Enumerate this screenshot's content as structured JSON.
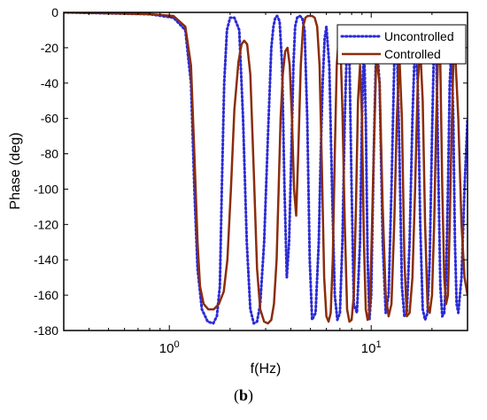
{
  "caption": {
    "open": "(",
    "label": "b",
    "close": ")"
  },
  "chart_data": {
    "type": "line",
    "xlabel": "f(Hz)",
    "ylabel": "Phase (deg)",
    "xscale": "log",
    "xlim": [
      0.3,
      30
    ],
    "ylim": [
      -180,
      0
    ],
    "yticks": [
      0,
      -20,
      -40,
      -60,
      -80,
      -100,
      -120,
      -140,
      -160,
      -180
    ],
    "xticks": [
      {
        "value": 1,
        "base": "10",
        "exp": "0"
      },
      {
        "value": 10,
        "base": "10",
        "exp": "1"
      }
    ],
    "grid": false,
    "legend": "top-right",
    "series": [
      {
        "name": "Uncontrolled",
        "color": "#2b2bd6",
        "style": "dotted",
        "x": [
          0.3,
          0.8,
          1.05,
          1.2,
          1.28,
          1.33,
          1.38,
          1.45,
          1.55,
          1.65,
          1.72,
          1.78,
          1.82,
          1.87,
          1.93,
          2.0,
          2.1,
          2.22,
          2.32,
          2.42,
          2.52,
          2.62,
          2.72,
          2.82,
          2.95,
          3.08,
          3.2,
          3.28,
          3.35,
          3.42,
          3.52,
          3.62,
          3.72,
          3.82,
          3.92,
          4.02,
          4.12,
          4.2,
          4.3,
          4.42,
          4.55,
          4.68,
          4.82,
          4.96,
          5.1,
          5.3,
          5.5,
          5.62,
          5.75,
          5.88,
          6.0,
          6.2,
          6.4,
          6.6,
          6.8,
          7.0,
          7.2,
          7.4,
          7.6,
          7.8,
          8.0,
          8.2,
          8.5,
          8.8,
          9.0,
          9.2,
          9.4,
          9.6,
          9.8,
          10.0,
          10.3,
          10.6,
          11.0,
          11.4,
          11.8,
          12.2,
          12.6,
          13.0,
          13.4,
          13.8,
          14.2,
          14.6,
          15.0,
          15.5,
          16.0,
          16.5,
          17.0,
          17.5,
          18.0,
          18.5,
          19.0,
          19.5,
          20.0,
          20.5,
          21.0,
          21.5,
          22.0,
          22.5,
          23.0,
          23.5,
          24.0,
          24.5,
          25.0,
          25.5,
          26.0,
          26.5,
          27.0,
          28.0,
          29.0,
          30.0
        ],
        "y": [
          0,
          -1,
          -3,
          -10,
          -40,
          -100,
          -145,
          -168,
          -175,
          -176,
          -172,
          -155,
          -100,
          -40,
          -10,
          -3,
          -3,
          -10,
          -60,
          -130,
          -168,
          -176,
          -175,
          -165,
          -130,
          -70,
          -20,
          -8,
          -3,
          -2,
          -5,
          -30,
          -100,
          -150,
          -130,
          -80,
          -30,
          -8,
          -3,
          -2,
          -3,
          -10,
          -60,
          -140,
          -174,
          -170,
          -130,
          -80,
          -40,
          -15,
          -8,
          -30,
          -100,
          -160,
          -174,
          -170,
          -130,
          -60,
          -15,
          -25,
          -100,
          -165,
          -170,
          -130,
          -60,
          -15,
          -60,
          -140,
          -174,
          -160,
          -80,
          -15,
          -40,
          -130,
          -170,
          -160,
          -100,
          -30,
          -15,
          -80,
          -155,
          -172,
          -170,
          -130,
          -60,
          -15,
          -40,
          -120,
          -168,
          -174,
          -170,
          -140,
          -70,
          -15,
          -20,
          -90,
          -155,
          -172,
          -170,
          -150,
          -100,
          -40,
          -20,
          -60,
          -130,
          -165,
          -170,
          -150,
          -100,
          -60
        ]
      },
      {
        "name": "Controlled",
        "color": "#8b2d0c",
        "style": "solid",
        "x": [
          0.3,
          0.8,
          1.05,
          1.2,
          1.28,
          1.33,
          1.38,
          1.42,
          1.48,
          1.56,
          1.66,
          1.76,
          1.86,
          1.94,
          2.02,
          2.1,
          2.2,
          2.28,
          2.35,
          2.43,
          2.52,
          2.62,
          2.72,
          2.82,
          2.95,
          3.08,
          3.2,
          3.3,
          3.4,
          3.48,
          3.56,
          3.65,
          3.75,
          3.85,
          3.95,
          4.05,
          4.15,
          4.25,
          4.35,
          4.48,
          4.6,
          4.72,
          4.85,
          4.98,
          5.1,
          5.25,
          5.4,
          5.55,
          5.7,
          5.85,
          6.0,
          6.15,
          6.3,
          6.45,
          6.6,
          6.75,
          6.9,
          7.05,
          7.2,
          7.4,
          7.6,
          7.8,
          8.0,
          8.2,
          8.4,
          8.6,
          8.8,
          9.0,
          9.2,
          9.4,
          9.6,
          9.8,
          10.0,
          10.3,
          10.6,
          11.0,
          11.4,
          11.8,
          12.2,
          12.6,
          13.0,
          13.4,
          13.8,
          14.2,
          14.6,
          15.0,
          15.5,
          16.0,
          16.5,
          17.0,
          17.5,
          18.0,
          18.5,
          19.0,
          19.5,
          20.0,
          20.5,
          21.0,
          21.5,
          22.0,
          22.5,
          23.0,
          23.5,
          24.0,
          24.5,
          25.0,
          25.5,
          26.0,
          27.0,
          28.0,
          29.0,
          30.0
        ],
        "y": [
          0,
          -1,
          -2,
          -8,
          -30,
          -80,
          -130,
          -155,
          -165,
          -168,
          -168,
          -165,
          -158,
          -140,
          -100,
          -55,
          -28,
          -18,
          -16,
          -18,
          -35,
          -90,
          -145,
          -168,
          -175,
          -176,
          -174,
          -165,
          -140,
          -100,
          -60,
          -35,
          -22,
          -20,
          -30,
          -60,
          -100,
          -115,
          -80,
          -30,
          -8,
          -3,
          -2,
          -2,
          -2,
          -3,
          -8,
          -30,
          -90,
          -150,
          -172,
          -175,
          -170,
          -140,
          -80,
          -30,
          -15,
          -20,
          -55,
          -120,
          -168,
          -175,
          -174,
          -160,
          -110,
          -50,
          -30,
          -60,
          -130,
          -168,
          -174,
          -170,
          -140,
          -80,
          -25,
          -40,
          -110,
          -160,
          -172,
          -165,
          -120,
          -60,
          -25,
          -60,
          -140,
          -172,
          -170,
          -150,
          -100,
          -40,
          -20,
          -50,
          -120,
          -165,
          -170,
          -160,
          -120,
          -60,
          -20,
          -30,
          -100,
          -150,
          -165,
          -160,
          -120,
          -70,
          -30,
          -20,
          -60,
          -120,
          -150,
          -160
        ]
      }
    ]
  }
}
